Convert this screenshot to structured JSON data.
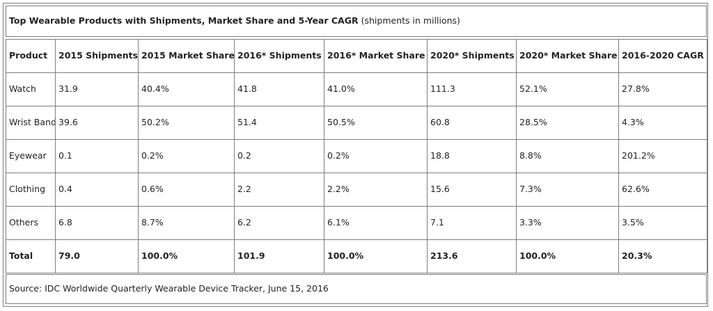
{
  "chart_data": {
    "type": "table",
    "title": "Top Wearable Products with Shipments, Market Share and 5-Year CAGR",
    "subtitle": "(shipments in millions)",
    "columns": [
      "Product",
      "2015 Shipments",
      "2015 Market Share",
      "2016* Shipments",
      "2016* Market Share",
      "2020* Shipments",
      "2020* Market Share",
      "2016-2020 CAGR"
    ],
    "rows": [
      [
        "Watch",
        "31.9",
        "40.4%",
        "41.8",
        "41.0%",
        "111.3",
        "52.1%",
        "27.8%"
      ],
      [
        "Wrist Band",
        "39.6",
        "50.2%",
        "51.4",
        "50.5%",
        "60.8",
        "28.5%",
        "4.3%"
      ],
      [
        "Eyewear",
        "0.1",
        "0.2%",
        "0.2",
        "0.2%",
        "18.8",
        "8.8%",
        "201.2%"
      ],
      [
        "Clothing",
        "0.4",
        "0.6%",
        "2.2",
        "2.2%",
        "15.6",
        "7.3%",
        "62.6%"
      ],
      [
        "Others",
        "6.8",
        "8.7%",
        "6.2",
        "6.1%",
        "7.1",
        "3.3%",
        "3.5%"
      ]
    ],
    "total": [
      "Total",
      "79.0",
      "100.0%",
      "101.9",
      "100.0%",
      "213.6",
      "100.0%",
      "20.3%"
    ],
    "source": "Source: IDC Worldwide Quarterly Wearable Device Tracker, June 15, 2016"
  },
  "colors": {
    "border": "#7d7d7d",
    "text": "#222222",
    "background": "#ffffff"
  }
}
